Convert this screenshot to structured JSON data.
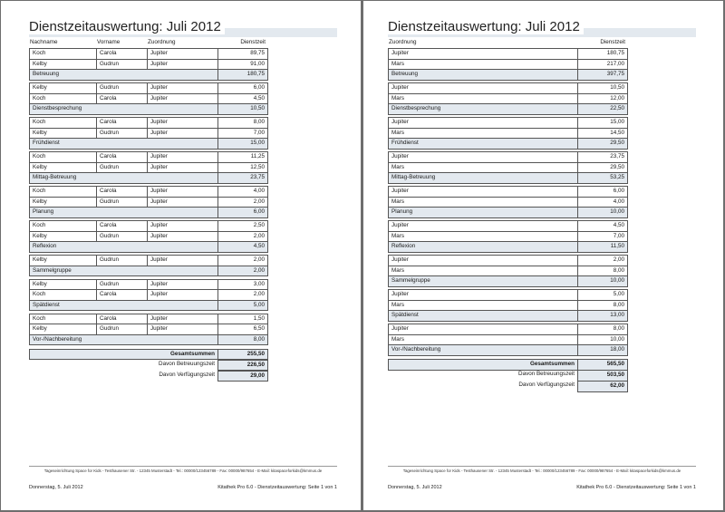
{
  "pages": [
    {
      "title": "Dienstzeitauswertung: Juli 2012",
      "headers": [
        "Nachname",
        "Vorname",
        "Zuordnung",
        "Dienstzeit"
      ],
      "groups": [
        {
          "rows": [
            [
              "Koch",
              "Carola",
              "Jupiter",
              "89,75"
            ],
            [
              "Kelby",
              "Gudrun",
              "Jupiter",
              "91,00"
            ]
          ],
          "subtotal": {
            "label": "Betreuung",
            "value": "180,75"
          }
        },
        {
          "rows": [
            [
              "Kelby",
              "Gudrun",
              "Jupiter",
              "6,00"
            ],
            [
              "Koch",
              "Carola",
              "Jupiter",
              "4,50"
            ]
          ],
          "subtotal": {
            "label": "Dienstbesprechung",
            "value": "10,50"
          }
        },
        {
          "rows": [
            [
              "Koch",
              "Carola",
              "Jupiter",
              "8,00"
            ],
            [
              "Kelby",
              "Gudrun",
              "Jupiter",
              "7,00"
            ]
          ],
          "subtotal": {
            "label": "Frühdienst",
            "value": "15,00"
          }
        },
        {
          "rows": [
            [
              "Koch",
              "Carola",
              "Jupiter",
              "11,25"
            ],
            [
              "Kelby",
              "Gudrun",
              "Jupiter",
              "12,50"
            ]
          ],
          "subtotal": {
            "label": "Mittag-Betreuung",
            "value": "23,75"
          }
        },
        {
          "rows": [
            [
              "Koch",
              "Carola",
              "Jupiter",
              "4,00"
            ],
            [
              "Kelby",
              "Gudrun",
              "Jupiter",
              "2,00"
            ]
          ],
          "subtotal": {
            "label": "Planung",
            "value": "6,00"
          }
        },
        {
          "rows": [
            [
              "Koch",
              "Carola",
              "Jupiter",
              "2,50"
            ],
            [
              "Kelby",
              "Gudrun",
              "Jupiter",
              "2,00"
            ]
          ],
          "subtotal": {
            "label": "Reflexion",
            "value": "4,50"
          }
        },
        {
          "rows": [
            [
              "Kelby",
              "Gudrun",
              "Jupiter",
              "2,00"
            ]
          ],
          "subtotal": {
            "label": "Sammelgruppe",
            "value": "2,00"
          }
        },
        {
          "rows": [
            [
              "Kelby",
              "Gudrun",
              "Jupiter",
              "3,00"
            ],
            [
              "Koch",
              "Carola",
              "Jupiter",
              "2,00"
            ]
          ],
          "subtotal": {
            "label": "Spätdienst",
            "value": "5,00"
          }
        },
        {
          "rows": [
            [
              "Koch",
              "Carola",
              "Jupiter",
              "1,50"
            ],
            [
              "Kelby",
              "Gudrun",
              "Jupiter",
              "6,50"
            ]
          ],
          "subtotal": {
            "label": "Vor-/Nachbereitung",
            "value": "8,00"
          }
        }
      ],
      "totals": [
        {
          "label": "Gesamtsummen",
          "value": "255,50"
        },
        {
          "label": "Davon Betreuungszeit",
          "value": "226,50"
        },
        {
          "label": "Davon Verfügungszeit",
          "value": "29,00"
        }
      ],
      "footer": {
        "address": "Tageseinrichtung Space for Kids - Testhausener Str. - 12345 Musterstadt - Tel.: 00000/123456789 - Fax: 00000/987654 - E-Mail: kitaspaceforkids@kmmus.de",
        "date": "Donnerstag, 5. Juli 2012",
        "info": "Kitathek Pro 6.0 - Dienstzeitauswertung: Seite 1 von 1"
      }
    },
    {
      "title": "Dienstzeitauswertung: Juli 2012",
      "headers": [
        "Zuordnung",
        "Dienstzeit"
      ],
      "groups": [
        {
          "rows": [
            [
              "Jupiter",
              "180,75"
            ],
            [
              "Mars",
              "217,00"
            ]
          ],
          "subtotal": {
            "label": "Betreuung",
            "value": "397,75"
          }
        },
        {
          "rows": [
            [
              "Jupiter",
              "10,50"
            ],
            [
              "Mars",
              "12,00"
            ]
          ],
          "subtotal": {
            "label": "Dienstbesprechung",
            "value": "22,50"
          }
        },
        {
          "rows": [
            [
              "Jupiter",
              "15,00"
            ],
            [
              "Mars",
              "14,50"
            ]
          ],
          "subtotal": {
            "label": "Frühdienst",
            "value": "29,50"
          }
        },
        {
          "rows": [
            [
              "Jupiter",
              "23,75"
            ],
            [
              "Mars",
              "29,50"
            ]
          ],
          "subtotal": {
            "label": "Mittag-Betreuung",
            "value": "53,25"
          }
        },
        {
          "rows": [
            [
              "Jupiter",
              "6,00"
            ],
            [
              "Mars",
              "4,00"
            ]
          ],
          "subtotal": {
            "label": "Planung",
            "value": "10,00"
          }
        },
        {
          "rows": [
            [
              "Jupiter",
              "4,50"
            ],
            [
              "Mars",
              "7,00"
            ]
          ],
          "subtotal": {
            "label": "Reflexion",
            "value": "11,50"
          }
        },
        {
          "rows": [
            [
              "Jupiter",
              "2,00"
            ],
            [
              "Mars",
              "8,00"
            ]
          ],
          "subtotal": {
            "label": "Sammelgruppe",
            "value": "10,00"
          }
        },
        {
          "rows": [
            [
              "Jupiter",
              "5,00"
            ],
            [
              "Mars",
              "8,00"
            ]
          ],
          "subtotal": {
            "label": "Spätdienst",
            "value": "13,00"
          }
        },
        {
          "rows": [
            [
              "Jupiter",
              "8,00"
            ],
            [
              "Mars",
              "10,00"
            ]
          ],
          "subtotal": {
            "label": "Vor-/Nachbereitung",
            "value": "18,00"
          }
        }
      ],
      "totals": [
        {
          "label": "Gesamtsummen",
          "value": "565,50"
        },
        {
          "label": "Davon Betreuungszeit",
          "value": "503,50"
        },
        {
          "label": "Davon Verfügungszeit",
          "value": "62,00"
        }
      ],
      "footer": {
        "address": "Tageseinrichtung Space for Kids - Testhausener Str. - 12345 Musterstadt - Tel.: 00000/123456789 - Fax: 00000/987654 - E-Mail: kitaspaceforkids@kmmus.de",
        "date": "Donnerstag, 5. Juli 2012",
        "info": "Kitathek Pro 6.0 - Dienstzeitauswertung: Seite 1 von 1"
      }
    }
  ]
}
